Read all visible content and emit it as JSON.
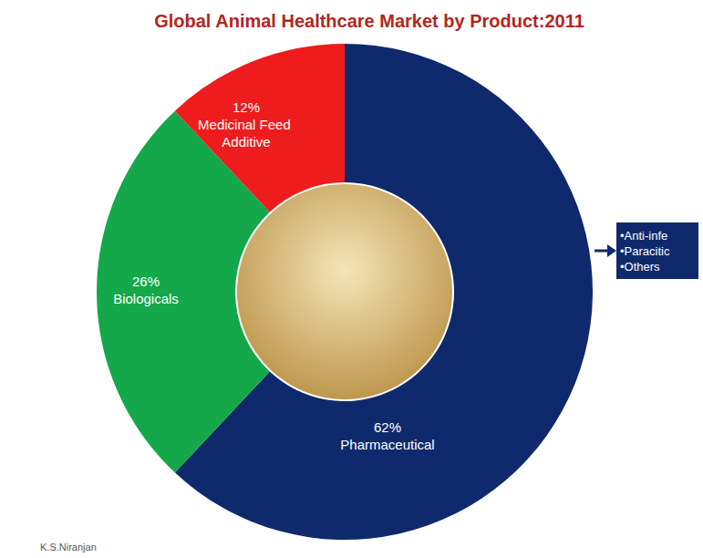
{
  "chart_data": {
    "type": "pie",
    "title": "Global Animal Healthcare Market by Product:2011",
    "categories": [
      "Pharmaceutical",
      "Biologicals",
      "Medicinal Feed Additive"
    ],
    "values": [
      62,
      26,
      12
    ],
    "value_labels": [
      "62%",
      "26%",
      "12%"
    ],
    "colors": [
      "#0f2a6c",
      "#14a84a",
      "#ee1c1c"
    ],
    "data_labels": true,
    "callout": [
      "•Anti-infe",
      "•Paracitic",
      "•Others"
    ],
    "credit": "K.S.Niranjan"
  }
}
